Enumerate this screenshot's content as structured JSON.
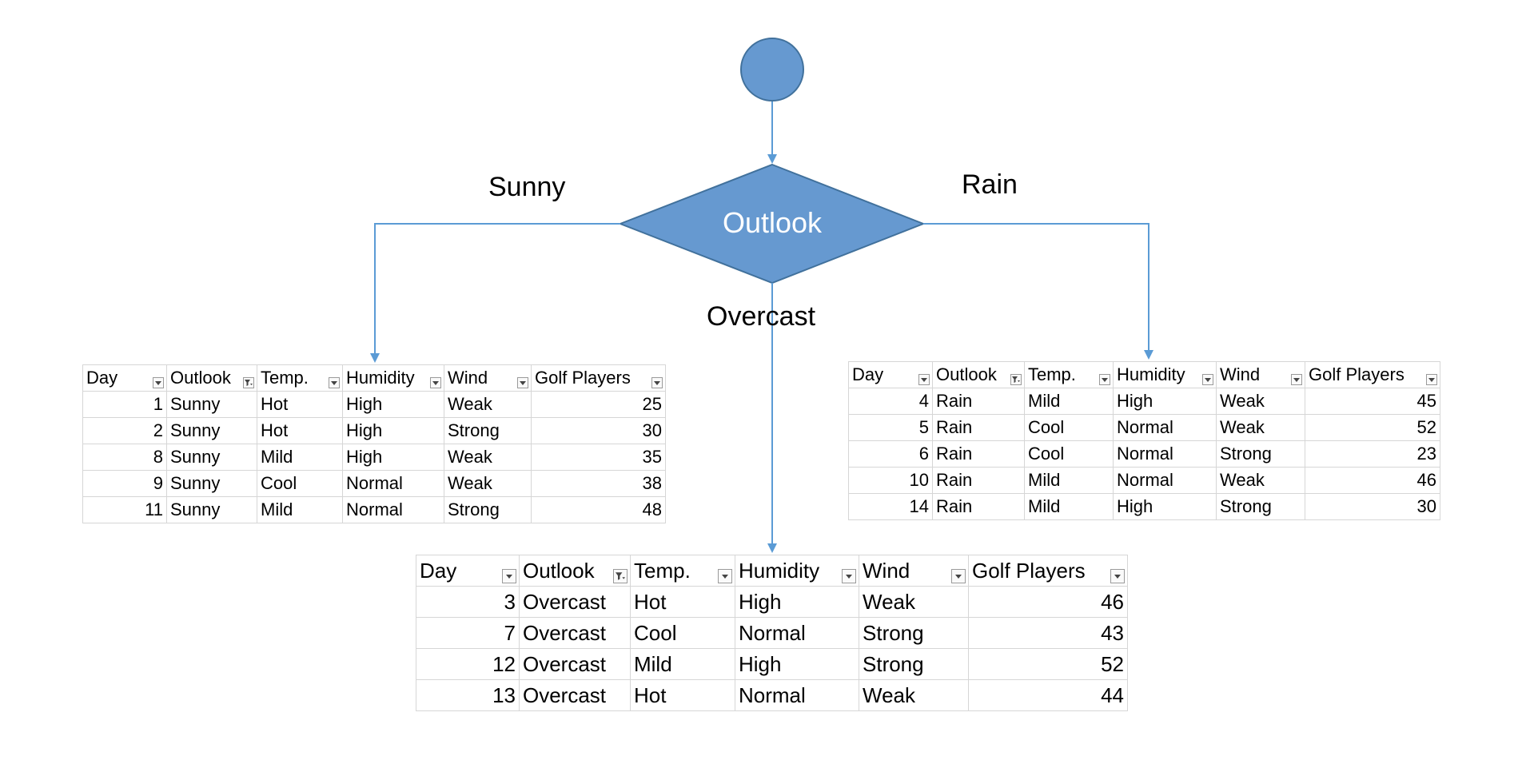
{
  "root": {
    "decision_label": "Outlook"
  },
  "branches": {
    "sunny": "Sunny",
    "overcast": "Overcast",
    "rain": "Rain"
  },
  "columns": [
    "Day",
    "Outlook",
    "Temp.",
    "Humidity",
    "Wind",
    "Golf Players"
  ],
  "filtered_column": "Outlook",
  "colors": {
    "node_fill": "#6699d0",
    "node_stroke": "#41719c",
    "connector": "#5b9bd5"
  },
  "tables": {
    "sunny": [
      {
        "day": "1",
        "outlook": "Sunny",
        "temp": "Hot",
        "humidity": "High",
        "wind": "Weak",
        "players": "25"
      },
      {
        "day": "2",
        "outlook": "Sunny",
        "temp": "Hot",
        "humidity": "High",
        "wind": "Strong",
        "players": "30"
      },
      {
        "day": "8",
        "outlook": "Sunny",
        "temp": "Mild",
        "humidity": "High",
        "wind": "Weak",
        "players": "35"
      },
      {
        "day": "9",
        "outlook": "Sunny",
        "temp": "Cool",
        "humidity": "Normal",
        "wind": "Weak",
        "players": "38"
      },
      {
        "day": "11",
        "outlook": "Sunny",
        "temp": "Mild",
        "humidity": "Normal",
        "wind": "Strong",
        "players": "48"
      }
    ],
    "rain": [
      {
        "day": "4",
        "outlook": "Rain",
        "temp": "Mild",
        "humidity": "High",
        "wind": "Weak",
        "players": "45"
      },
      {
        "day": "5",
        "outlook": "Rain",
        "temp": "Cool",
        "humidity": "Normal",
        "wind": "Weak",
        "players": "52"
      },
      {
        "day": "6",
        "outlook": "Rain",
        "temp": "Cool",
        "humidity": "Normal",
        "wind": "Strong",
        "players": "23"
      },
      {
        "day": "10",
        "outlook": "Rain",
        "temp": "Mild",
        "humidity": "Normal",
        "wind": "Weak",
        "players": "46"
      },
      {
        "day": "14",
        "outlook": "Rain",
        "temp": "Mild",
        "humidity": "High",
        "wind": "Strong",
        "players": "30"
      }
    ],
    "overcast": [
      {
        "day": "3",
        "outlook": "Overcast",
        "temp": "Hot",
        "humidity": "High",
        "wind": "Weak",
        "players": "46"
      },
      {
        "day": "7",
        "outlook": "Overcast",
        "temp": "Cool",
        "humidity": "Normal",
        "wind": "Strong",
        "players": "43"
      },
      {
        "day": "12",
        "outlook": "Overcast",
        "temp": "Mild",
        "humidity": "High",
        "wind": "Strong",
        "players": "52"
      },
      {
        "day": "13",
        "outlook": "Overcast",
        "temp": "Hot",
        "humidity": "Normal",
        "wind": "Weak",
        "players": "44"
      }
    ]
  }
}
